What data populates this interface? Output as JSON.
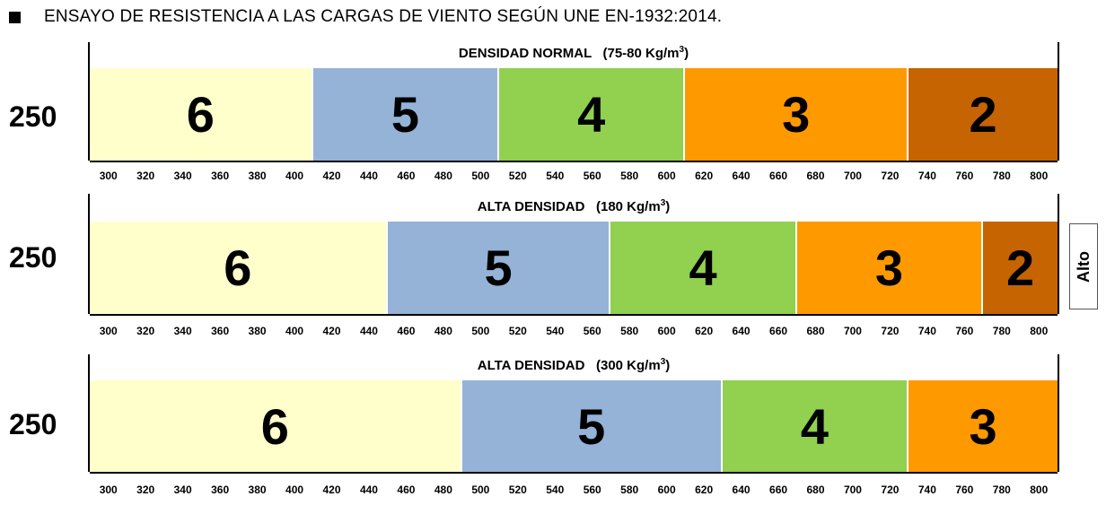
{
  "header": {
    "title": "ENSAYO DE RESISTENCIA A LAS CARGAS DE VIENTO SEGÚN UNE EN-1932:2014."
  },
  "side_label": "Alto",
  "tick_labels": [
    "300",
    "320",
    "340",
    "360",
    "380",
    "400",
    "420",
    "440",
    "460",
    "480",
    "500",
    "520",
    "540",
    "560",
    "580",
    "600",
    "620",
    "640",
    "660",
    "680",
    "700",
    "720",
    "740",
    "760",
    "780",
    "800"
  ],
  "colors": {
    "6": "#ffffcc",
    "5": "#95b3d7",
    "4": "#92d050",
    "3": "#ff9900",
    "2": "#c56400"
  },
  "chart_data": [
    {
      "type": "bar",
      "title_main": "DENSIDAD NORMAL",
      "title_unit": "(75-80 Kg/m",
      "title_sup": "3",
      "title_close": ")",
      "row_label": "250",
      "xlim": [
        290,
        810
      ],
      "segments": [
        {
          "label": "6",
          "from": 290,
          "to": 410
        },
        {
          "label": "5",
          "from": 410,
          "to": 510
        },
        {
          "label": "4",
          "from": 510,
          "to": 610
        },
        {
          "label": "3",
          "from": 610,
          "to": 730
        },
        {
          "label": "2",
          "from": 730,
          "to": 810
        }
      ]
    },
    {
      "type": "bar",
      "title_main": "ALTA DENSIDAD",
      "title_unit": "(180 Kg/m",
      "title_sup": "3",
      "title_close": ")",
      "row_label": "250",
      "xlim": [
        290,
        810
      ],
      "segments": [
        {
          "label": "6",
          "from": 290,
          "to": 450
        },
        {
          "label": "5",
          "from": 450,
          "to": 570
        },
        {
          "label": "4",
          "from": 570,
          "to": 670
        },
        {
          "label": "3",
          "from": 670,
          "to": 770
        },
        {
          "label": "2",
          "from": 770,
          "to": 810
        }
      ]
    },
    {
      "type": "bar",
      "title_main": "ALTA DENSIDAD",
      "title_unit": "(300 Kg/m",
      "title_sup": "3",
      "title_close": ")",
      "row_label": "250",
      "xlim": [
        290,
        810
      ],
      "segments": [
        {
          "label": "6",
          "from": 290,
          "to": 490
        },
        {
          "label": "5",
          "from": 490,
          "to": 630
        },
        {
          "label": "4",
          "from": 630,
          "to": 730
        },
        {
          "label": "3",
          "from": 730,
          "to": 810
        }
      ]
    }
  ]
}
